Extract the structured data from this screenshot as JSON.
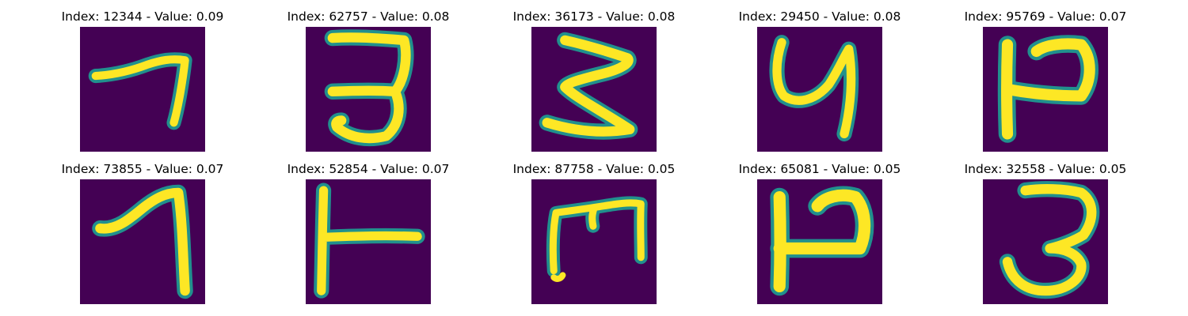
{
  "colors": {
    "background": "#440154",
    "stroke_edge": "#21908d",
    "stroke_mid": "#5ec962",
    "stroke_core": "#fde725"
  },
  "panels": [
    {
      "title": "Index: 12344 - Value: 0.09",
      "digit": "7"
    },
    {
      "title": "Index: 62757 - Value: 0.08",
      "digit": "3"
    },
    {
      "title": "Index: 36173 - Value: 0.08",
      "digit": "3 (rotated)"
    },
    {
      "title": "Index: 29450 - Value: 0.08",
      "digit": "4"
    },
    {
      "title": "Index: 95769 - Value: 0.07",
      "digit": "4 (rotated)"
    },
    {
      "title": "Index: 73855 - Value: 0.07",
      "digit": "1"
    },
    {
      "title": "Index: 52854 - Value: 0.07",
      "digit": "1 (rotated)"
    },
    {
      "title": "Index: 87758 - Value: 0.05",
      "digit": "3 (rotated)"
    },
    {
      "title": "Index: 65081 - Value: 0.05",
      "digit": "4 (rotated)"
    },
    {
      "title": "Index: 32558 - Value: 0.05",
      "digit": "3"
    }
  ]
}
